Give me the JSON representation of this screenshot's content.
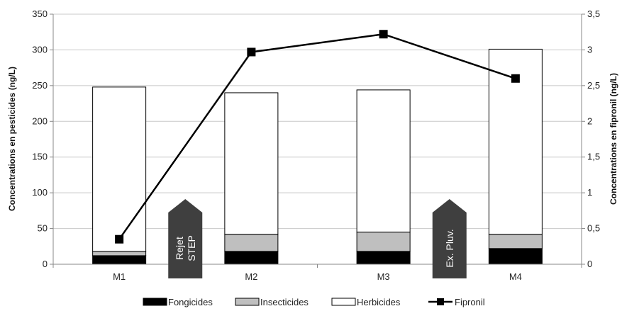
{
  "chart_data": {
    "type": "bar",
    "stacked": true,
    "categories": [
      "M1",
      "M2",
      "M3",
      "M4"
    ],
    "series": [
      {
        "name": "Fongicides",
        "color": "#000000",
        "values": [
          12,
          18,
          18,
          22
        ]
      },
      {
        "name": "Insecticides",
        "color": "#bfbfbf",
        "values": [
          6,
          24,
          27,
          20
        ]
      },
      {
        "name": "Herbicides",
        "color": "#ffffff",
        "values": [
          230,
          198,
          199,
          259
        ]
      }
    ],
    "line_series": {
      "name": "Fipronil",
      "axis": "right",
      "color": "#000000",
      "marker": "square",
      "values": [
        0.35,
        2.97,
        3.22,
        2.6
      ]
    },
    "ylabel": "Concentrations en pesticides (ng/L)",
    "ylabel_right": "Concentrations en fipronil (ng/L)",
    "ylim": [
      0,
      350
    ],
    "ylim_right": [
      0,
      3.5
    ],
    "yticks": [
      "0",
      "50",
      "100",
      "150",
      "200",
      "250",
      "300",
      "350"
    ],
    "yticks_right": [
      "0",
      "0,5",
      "1",
      "1,5",
      "2",
      "2,5",
      "3",
      "3,5"
    ],
    "grid": true,
    "legend_position": "bottom",
    "annotations": [
      {
        "lines": [
          "Rejet",
          "STEP"
        ],
        "between": [
          "M1",
          "M2"
        ],
        "color": "#3f3f3f"
      },
      {
        "lines": [
          "Ex. Pluv."
        ],
        "between": [
          "M3",
          "M4"
        ],
        "color": "#3f3f3f"
      }
    ]
  }
}
